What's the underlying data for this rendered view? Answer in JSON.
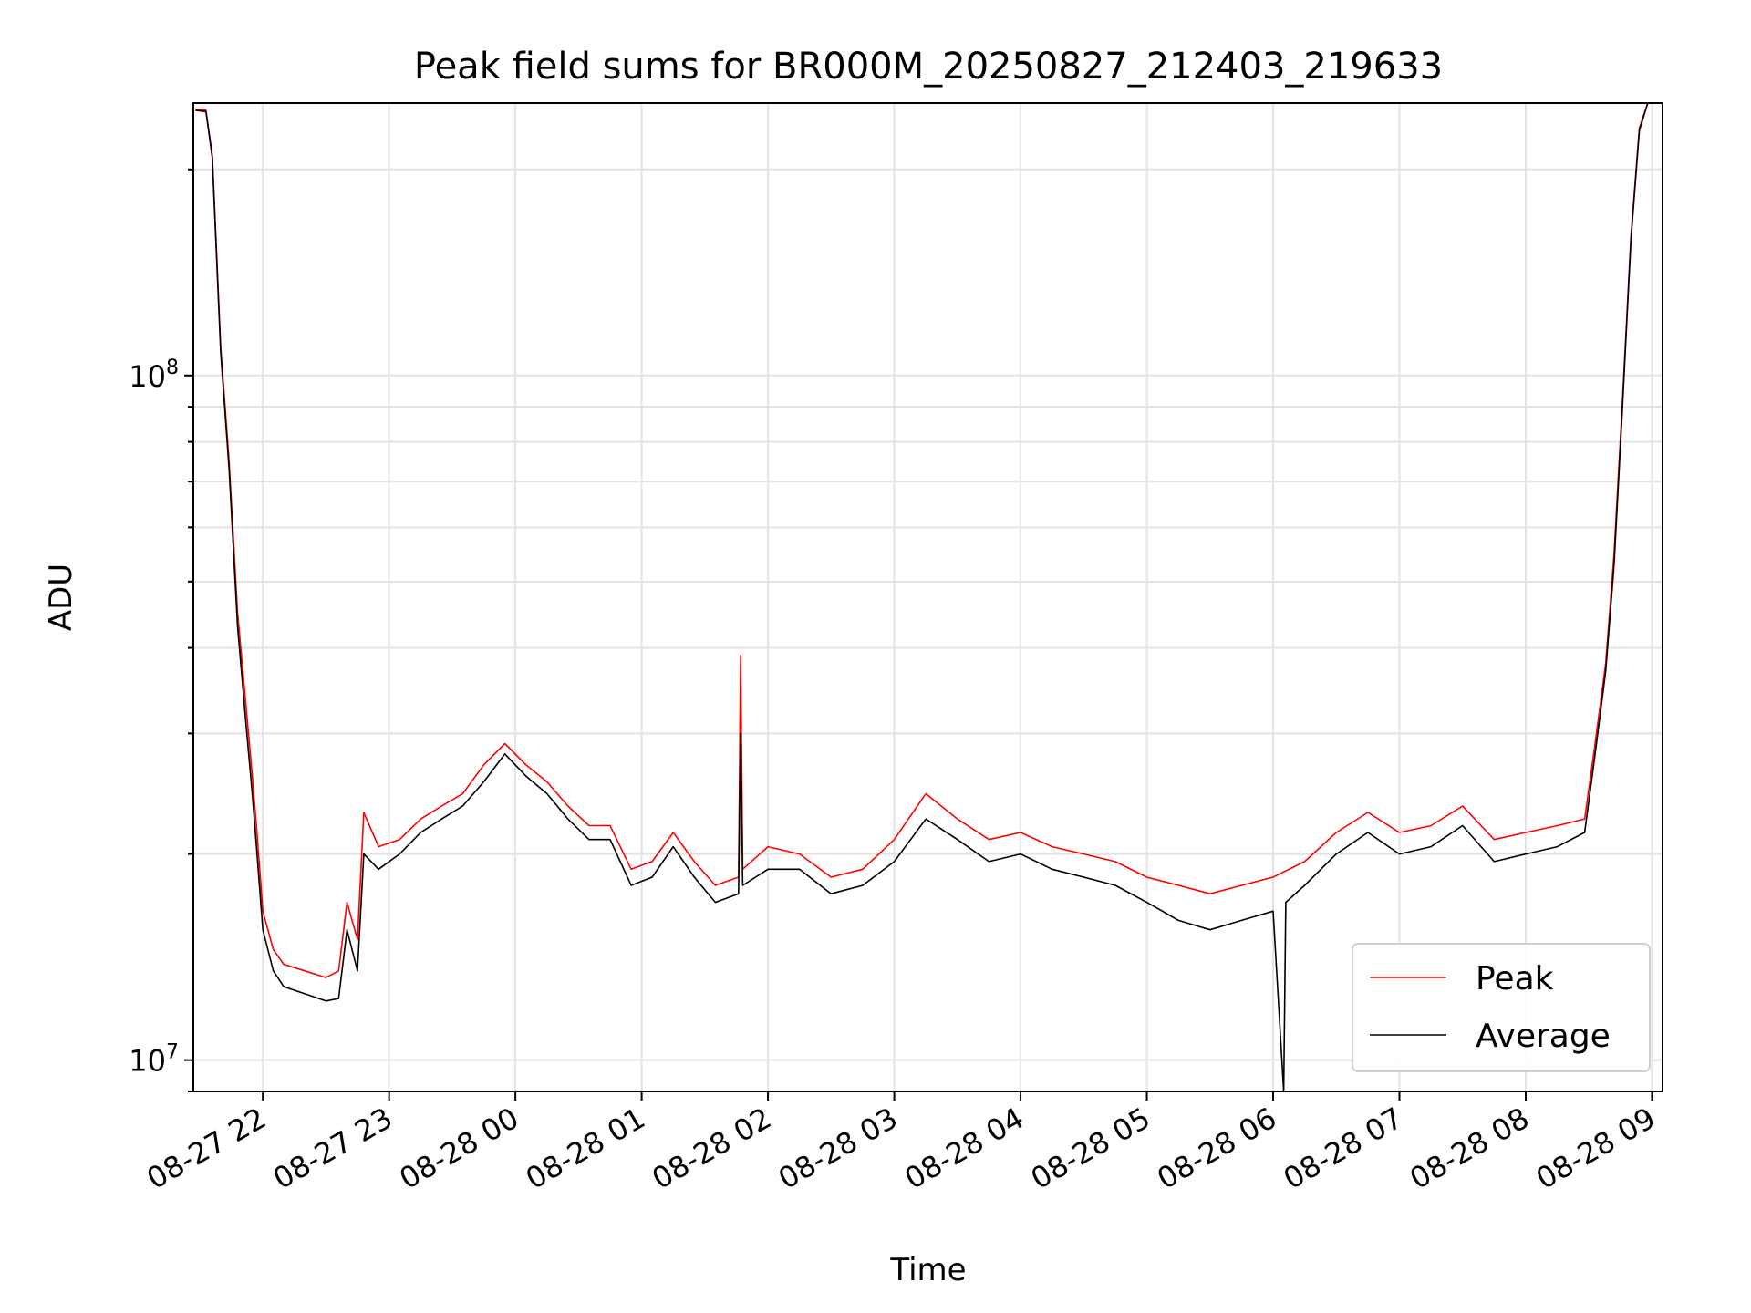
{
  "chart_data": {
    "type": "line",
    "title": "Peak field sums for BR000M_20250827_212403_219633",
    "xlabel": "Time",
    "ylabel": "ADU",
    "x_scale": "time",
    "y_scale": "log",
    "xlim": [
      "2025-08-27 21:27",
      "2025-08-28 09:05"
    ],
    "ylim": [
      9000000,
      250000000
    ],
    "grid": true,
    "legend_position": "lower-right",
    "x_ticks": [
      {
        "label": "08-27 22",
        "value": "2025-08-27 22:00"
      },
      {
        "label": "08-27 23",
        "value": "2025-08-27 23:00"
      },
      {
        "label": "08-28 00",
        "value": "2025-08-28 00:00"
      },
      {
        "label": "08-28 01",
        "value": "2025-08-28 01:00"
      },
      {
        "label": "08-28 02",
        "value": "2025-08-28 02:00"
      },
      {
        "label": "08-28 03",
        "value": "2025-08-28 03:00"
      },
      {
        "label": "08-28 04",
        "value": "2025-08-28 04:00"
      },
      {
        "label": "08-28 05",
        "value": "2025-08-28 05:00"
      },
      {
        "label": "08-28 06",
        "value": "2025-08-28 06:00"
      },
      {
        "label": "08-28 07",
        "value": "2025-08-28 07:00"
      },
      {
        "label": "08-28 08",
        "value": "2025-08-28 08:00"
      },
      {
        "label": "08-28 09",
        "value": "2025-08-28 09:00"
      }
    ],
    "y_ticks": [
      {
        "base": "10",
        "exp": "7",
        "value": 10000000
      },
      {
        "base": "10",
        "exp": "8",
        "value": 100000000
      }
    ],
    "series": [
      {
        "name": "Peak",
        "color": "#ff0000",
        "points": [
          [
            "2025-08-27 21:28",
            245000000
          ],
          [
            "2025-08-27 21:33",
            244000000
          ],
          [
            "2025-08-27 21:36",
            210000000
          ],
          [
            "2025-08-27 21:40",
            110000000
          ],
          [
            "2025-08-27 21:44",
            75000000
          ],
          [
            "2025-08-27 21:48",
            45000000
          ],
          [
            "2025-08-27 21:52",
            33000000
          ],
          [
            "2025-08-27 21:55",
            26000000
          ],
          [
            "2025-08-27 21:57",
            22000000
          ],
          [
            "2025-08-27 22:00",
            16500000
          ],
          [
            "2025-08-27 22:05",
            14500000
          ],
          [
            "2025-08-27 22:10",
            13800000
          ],
          [
            "2025-08-27 22:20",
            13500000
          ],
          [
            "2025-08-27 22:30",
            13200000
          ],
          [
            "2025-08-27 22:36",
            13500000
          ],
          [
            "2025-08-27 22:40",
            17000000
          ],
          [
            "2025-08-27 22:45",
            15000000
          ],
          [
            "2025-08-27 22:48",
            23000000
          ],
          [
            "2025-08-27 22:55",
            20500000
          ],
          [
            "2025-08-27 23:05",
            21000000
          ],
          [
            "2025-08-27 23:15",
            22500000
          ],
          [
            "2025-08-27 23:25",
            23500000
          ],
          [
            "2025-08-27 23:35",
            24500000
          ],
          [
            "2025-08-27 23:45",
            27000000
          ],
          [
            "2025-08-27 23:55",
            29000000
          ],
          [
            "2025-08-28 00:05",
            27000000
          ],
          [
            "2025-08-28 00:15",
            25500000
          ],
          [
            "2025-08-28 00:25",
            23500000
          ],
          [
            "2025-08-28 00:35",
            22000000
          ],
          [
            "2025-08-28 00:45",
            22000000
          ],
          [
            "2025-08-28 00:55",
            19000000
          ],
          [
            "2025-08-28 01:05",
            19500000
          ],
          [
            "2025-08-28 01:15",
            21500000
          ],
          [
            "2025-08-28 01:25",
            19500000
          ],
          [
            "2025-08-28 01:35",
            18000000
          ],
          [
            "2025-08-28 01:46",
            18500000
          ],
          [
            "2025-08-28 01:47",
            39000000
          ],
          [
            "2025-08-28 01:48",
            19000000
          ],
          [
            "2025-08-28 02:00",
            20500000
          ],
          [
            "2025-08-28 02:15",
            20000000
          ],
          [
            "2025-08-28 02:30",
            18500000
          ],
          [
            "2025-08-28 02:45",
            19000000
          ],
          [
            "2025-08-28 03:00",
            21000000
          ],
          [
            "2025-08-28 03:15",
            24500000
          ],
          [
            "2025-08-28 03:30",
            22500000
          ],
          [
            "2025-08-28 03:45",
            21000000
          ],
          [
            "2025-08-28 04:00",
            21500000
          ],
          [
            "2025-08-28 04:15",
            20500000
          ],
          [
            "2025-08-28 04:30",
            20000000
          ],
          [
            "2025-08-28 04:45",
            19500000
          ],
          [
            "2025-08-28 05:00",
            18500000
          ],
          [
            "2025-08-28 05:15",
            18000000
          ],
          [
            "2025-08-28 05:30",
            17500000
          ],
          [
            "2025-08-28 05:45",
            18000000
          ],
          [
            "2025-08-28 06:00",
            18500000
          ],
          [
            "2025-08-28 06:15",
            19500000
          ],
          [
            "2025-08-28 06:30",
            21500000
          ],
          [
            "2025-08-28 06:45",
            23000000
          ],
          [
            "2025-08-28 07:00",
            21500000
          ],
          [
            "2025-08-28 07:15",
            22000000
          ],
          [
            "2025-08-28 07:30",
            23500000
          ],
          [
            "2025-08-28 07:45",
            21000000
          ],
          [
            "2025-08-28 08:00",
            21500000
          ],
          [
            "2025-08-28 08:15",
            22000000
          ],
          [
            "2025-08-28 08:28",
            22500000
          ],
          [
            "2025-08-28 08:33",
            29000000
          ],
          [
            "2025-08-28 08:38",
            38000000
          ],
          [
            "2025-08-28 08:42",
            55000000
          ],
          [
            "2025-08-28 08:46",
            92000000
          ],
          [
            "2025-08-28 08:50",
            160000000
          ],
          [
            "2025-08-28 08:54",
            230000000
          ],
          [
            "2025-08-28 08:58",
            250000000
          ]
        ]
      },
      {
        "name": "Average",
        "color": "#000000",
        "points": [
          [
            "2025-08-27 21:28",
            244000000
          ],
          [
            "2025-08-27 21:33",
            243000000
          ],
          [
            "2025-08-27 21:36",
            208000000
          ],
          [
            "2025-08-27 21:40",
            108000000
          ],
          [
            "2025-08-27 21:44",
            73000000
          ],
          [
            "2025-08-27 21:48",
            43000000
          ],
          [
            "2025-08-27 21:52",
            31000000
          ],
          [
            "2025-08-27 21:55",
            24500000
          ],
          [
            "2025-08-27 21:57",
            20500000
          ],
          [
            "2025-08-27 22:00",
            15500000
          ],
          [
            "2025-08-27 22:05",
            13500000
          ],
          [
            "2025-08-27 22:10",
            12800000
          ],
          [
            "2025-08-27 22:20",
            12500000
          ],
          [
            "2025-08-27 22:30",
            12200000
          ],
          [
            "2025-08-27 22:36",
            12300000
          ],
          [
            "2025-08-27 22:40",
            15500000
          ],
          [
            "2025-08-27 22:45",
            13500000
          ],
          [
            "2025-08-27 22:48",
            20000000
          ],
          [
            "2025-08-27 22:55",
            19000000
          ],
          [
            "2025-08-27 23:05",
            20000000
          ],
          [
            "2025-08-27 23:15",
            21500000
          ],
          [
            "2025-08-27 23:25",
            22500000
          ],
          [
            "2025-08-27 23:35",
            23500000
          ],
          [
            "2025-08-27 23:45",
            25500000
          ],
          [
            "2025-08-27 23:55",
            28000000
          ],
          [
            "2025-08-28 00:05",
            26000000
          ],
          [
            "2025-08-28 00:15",
            24500000
          ],
          [
            "2025-08-28 00:25",
            22500000
          ],
          [
            "2025-08-28 00:35",
            21000000
          ],
          [
            "2025-08-28 00:45",
            21000000
          ],
          [
            "2025-08-28 00:55",
            18000000
          ],
          [
            "2025-08-28 01:05",
            18500000
          ],
          [
            "2025-08-28 01:15",
            20500000
          ],
          [
            "2025-08-28 01:25",
            18500000
          ],
          [
            "2025-08-28 01:35",
            17000000
          ],
          [
            "2025-08-28 01:46",
            17500000
          ],
          [
            "2025-08-28 01:47",
            30000000
          ],
          [
            "2025-08-28 01:48",
            18000000
          ],
          [
            "2025-08-28 02:00",
            19000000
          ],
          [
            "2025-08-28 02:15",
            19000000
          ],
          [
            "2025-08-28 02:30",
            17500000
          ],
          [
            "2025-08-28 02:45",
            18000000
          ],
          [
            "2025-08-28 03:00",
            19500000
          ],
          [
            "2025-08-28 03:15",
            22500000
          ],
          [
            "2025-08-28 03:30",
            21000000
          ],
          [
            "2025-08-28 03:45",
            19500000
          ],
          [
            "2025-08-28 04:00",
            20000000
          ],
          [
            "2025-08-28 04:15",
            19000000
          ],
          [
            "2025-08-28 04:30",
            18500000
          ],
          [
            "2025-08-28 04:45",
            18000000
          ],
          [
            "2025-08-28 05:00",
            17000000
          ],
          [
            "2025-08-28 05:15",
            16000000
          ],
          [
            "2025-08-28 05:30",
            15500000
          ],
          [
            "2025-08-28 05:45",
            16000000
          ],
          [
            "2025-08-28 06:00",
            16500000
          ],
          [
            "2025-08-28 06:05",
            9000000
          ],
          [
            "2025-08-28 06:06",
            17000000
          ],
          [
            "2025-08-28 06:15",
            18000000
          ],
          [
            "2025-08-28 06:30",
            20000000
          ],
          [
            "2025-08-28 06:45",
            21500000
          ],
          [
            "2025-08-28 07:00",
            20000000
          ],
          [
            "2025-08-28 07:15",
            20500000
          ],
          [
            "2025-08-28 07:30",
            22000000
          ],
          [
            "2025-08-28 07:45",
            19500000
          ],
          [
            "2025-08-28 08:00",
            20000000
          ],
          [
            "2025-08-28 08:15",
            20500000
          ],
          [
            "2025-08-28 08:28",
            21500000
          ],
          [
            "2025-08-28 08:33",
            28000000
          ],
          [
            "2025-08-28 08:38",
            37000000
          ],
          [
            "2025-08-28 08:42",
            53000000
          ],
          [
            "2025-08-28 08:46",
            90000000
          ],
          [
            "2025-08-28 08:50",
            158000000
          ],
          [
            "2025-08-28 08:54",
            228000000
          ],
          [
            "2025-08-28 08:58",
            250000000
          ]
        ]
      }
    ]
  }
}
